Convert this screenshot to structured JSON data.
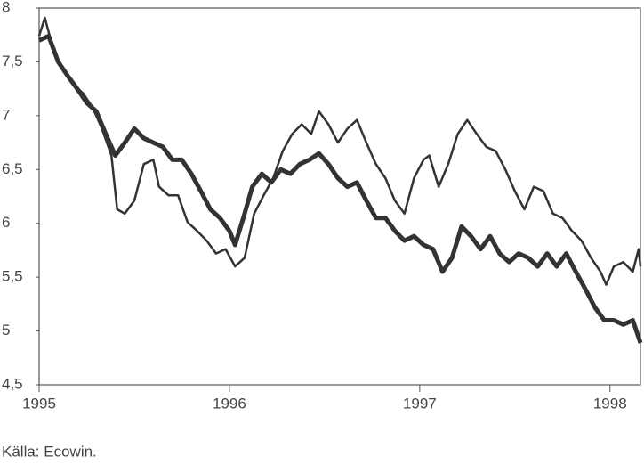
{
  "chart_data": {
    "type": "line",
    "xlim": [
      1995,
      1998.16
    ],
    "xticks": [
      1995,
      1996,
      1997,
      1998
    ],
    "ylim": [
      4.5,
      8
    ],
    "yticks": [
      {
        "value": 4.5,
        "label": "4,5"
      },
      5,
      {
        "value": 5.5,
        "label": "5,5"
      },
      6,
      {
        "value": 6.5,
        "label": "6,5"
      },
      7,
      {
        "value": 7.5,
        "label": "7,5"
      },
      8
    ],
    "grid": false,
    "series": [
      {
        "color": "#333333",
        "line_width": 5,
        "x": [
          1995.0,
          1995.05,
          1995.1,
          1995.15,
          1995.2,
          1995.25,
          1995.3,
          1995.35,
          1995.4,
          1995.45,
          1995.5,
          1995.55,
          1995.6,
          1995.65,
          1995.7,
          1995.75,
          1995.8,
          1995.85,
          1995.9,
          1995.95,
          1996.0,
          1996.03,
          1996.08,
          1996.12,
          1996.17,
          1996.22,
          1996.27,
          1996.32,
          1996.37,
          1996.42,
          1996.47,
          1996.52,
          1996.57,
          1996.62,
          1996.67,
          1996.72,
          1996.77,
          1996.82,
          1996.87,
          1996.92,
          1996.97,
          1997.02,
          1997.07,
          1997.12,
          1997.17,
          1997.22,
          1997.27,
          1997.32,
          1997.37,
          1997.42,
          1997.47,
          1997.52,
          1997.57,
          1997.62,
          1997.67,
          1997.72,
          1997.77,
          1997.82,
          1997.87,
          1997.92,
          1997.97,
          1998.02,
          1998.07,
          1998.12,
          1998.16
        ],
        "values": [
          7.7,
          7.74,
          7.5,
          7.37,
          7.25,
          7.12,
          7.04,
          6.83,
          6.63,
          6.75,
          6.88,
          6.79,
          6.75,
          6.71,
          6.59,
          6.59,
          6.46,
          6.3,
          6.13,
          6.05,
          5.93,
          5.8,
          6.09,
          6.34,
          6.46,
          6.38,
          6.5,
          6.46,
          6.55,
          6.59,
          6.65,
          6.55,
          6.42,
          6.34,
          6.38,
          6.21,
          6.05,
          6.05,
          5.93,
          5.84,
          5.88,
          5.8,
          5.76,
          5.55,
          5.68,
          5.97,
          5.88,
          5.76,
          5.88,
          5.72,
          5.64,
          5.72,
          5.68,
          5.6,
          5.72,
          5.6,
          5.72,
          5.55,
          5.39,
          5.22,
          5.1,
          5.1,
          5.06,
          5.1,
          4.89
        ]
      },
      {
        "color": "#333333",
        "line_width": 2.5,
        "x": [
          1995.0,
          1995.03,
          1995.08,
          1995.13,
          1995.18,
          1995.23,
          1995.28,
          1995.33,
          1995.38,
          1995.41,
          1995.45,
          1995.5,
          1995.55,
          1995.6,
          1995.63,
          1995.68,
          1995.73,
          1995.78,
          1995.83,
          1995.88,
          1995.93,
          1995.98,
          1996.03,
          1996.08,
          1996.13,
          1996.18,
          1996.23,
          1996.28,
          1996.33,
          1996.38,
          1996.43,
          1996.47,
          1996.52,
          1996.57,
          1996.62,
          1996.67,
          1996.72,
          1996.77,
          1996.82,
          1996.87,
          1996.92,
          1996.97,
          1997.02,
          1997.05,
          1997.1,
          1997.15,
          1997.2,
          1997.25,
          1997.3,
          1997.35,
          1997.4,
          1997.45,
          1997.5,
          1997.55,
          1997.6,
          1997.65,
          1997.7,
          1997.75,
          1997.8,
          1997.85,
          1997.9,
          1997.95,
          1997.98,
          1998.02,
          1998.07,
          1998.12,
          1998.15,
          1998.16
        ],
        "values": [
          7.74,
          7.91,
          7.58,
          7.41,
          7.29,
          7.21,
          7.08,
          6.88,
          6.63,
          6.13,
          6.09,
          6.21,
          6.55,
          6.59,
          6.34,
          6.26,
          6.26,
          6.01,
          5.93,
          5.84,
          5.72,
          5.76,
          5.6,
          5.68,
          6.09,
          6.26,
          6.42,
          6.67,
          6.83,
          6.92,
          6.83,
          7.04,
          6.92,
          6.75,
          6.88,
          6.96,
          6.75,
          6.55,
          6.42,
          6.21,
          6.09,
          6.42,
          6.59,
          6.63,
          6.34,
          6.55,
          6.83,
          6.96,
          6.83,
          6.71,
          6.67,
          6.5,
          6.3,
          6.13,
          6.34,
          6.3,
          6.09,
          6.05,
          5.93,
          5.84,
          5.68,
          5.55,
          5.43,
          5.6,
          5.64,
          5.55,
          5.76,
          5.6
        ]
      }
    ],
    "source": "Källa: Ecowin."
  }
}
